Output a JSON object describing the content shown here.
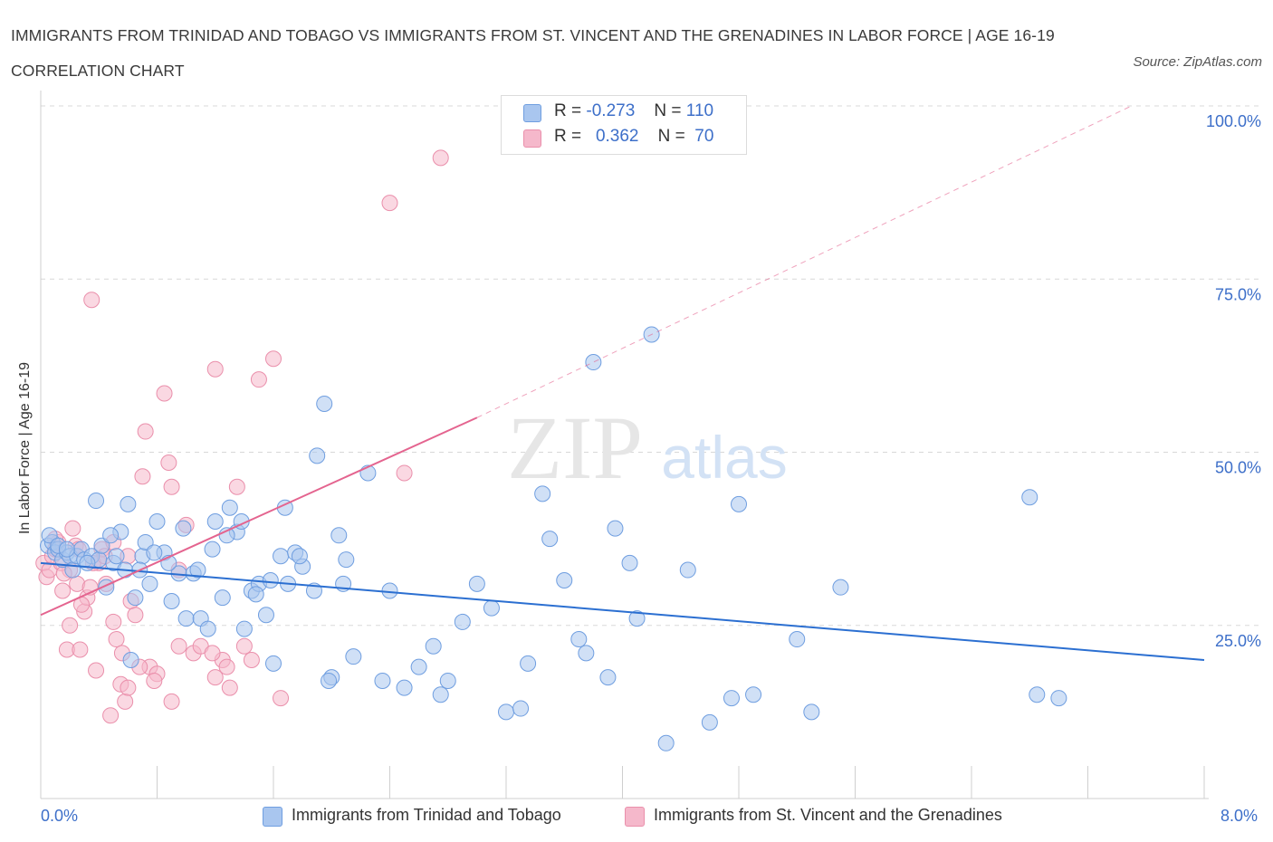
{
  "header": {
    "title": "IMMIGRANTS FROM TRINIDAD AND TOBAGO VS IMMIGRANTS FROM ST. VINCENT AND THE GRENADINES IN LABOR FORCE | AGE 16-19 CORRELATION CHART",
    "source": "Source: ZipAtlas.com"
  },
  "legend": {
    "rows": [
      {
        "r_label": "R =",
        "r_value": "-0.273",
        "n_label": "N =",
        "n_value": "110"
      },
      {
        "r_label": "R =",
        "r_value": "0.362",
        "n_label": "N =",
        "n_value": "70"
      }
    ]
  },
  "watermark": {
    "zip": "ZIP",
    "atlas": "atlas"
  },
  "colors": {
    "blue_fill": "#a9c6ef",
    "blue_stroke": "#6f9ee0",
    "blue_line": "#2b6fd1",
    "pink_fill": "#f5b8cb",
    "pink_stroke": "#ea8fab",
    "pink_line": "#e4648f",
    "grid": "#d8d8d8",
    "axis_label": "#3d6fc9"
  },
  "chart_data": {
    "type": "scatter",
    "title": "IMMIGRANTS FROM TRINIDAD AND TOBAGO VS IMMIGRANTS FROM ST. VINCENT AND THE GRENADINES IN LABOR FORCE | AGE 16-19 CORRELATION CHART",
    "xlabel": "",
    "ylabel": "In Labor Force | Age 16-19",
    "xlim": [
      0,
      8.0
    ],
    "ylim": [
      0,
      100
    ],
    "x_tick_labels": [
      "0.0%",
      "8.0%"
    ],
    "y_tick_labels": [
      "25.0%",
      "50.0%",
      "75.0%",
      "100.0%"
    ],
    "y_ticks": [
      25,
      50,
      75,
      100
    ],
    "grid": true,
    "legend_position": "bottom",
    "series": [
      {
        "name": "Immigrants from Trinidad and Tobago",
        "r": -0.273,
        "n": 110,
        "trend": {
          "x": [
            0,
            8.0
          ],
          "y": [
            34,
            20
          ]
        },
        "points": [
          [
            0.05,
            36.5
          ],
          [
            0.08,
            37
          ],
          [
            0.1,
            35.5
          ],
          [
            0.12,
            36
          ],
          [
            0.15,
            34.5
          ],
          [
            0.18,
            35.5
          ],
          [
            0.2,
            35
          ],
          [
            0.22,
            33
          ],
          [
            0.25,
            35
          ],
          [
            0.28,
            36
          ],
          [
            0.3,
            34.5
          ],
          [
            0.35,
            35
          ],
          [
            0.4,
            34.5
          ],
          [
            0.45,
            30.5
          ],
          [
            0.5,
            34
          ],
          [
            0.55,
            38.5
          ],
          [
            0.6,
            42.5
          ],
          [
            0.65,
            29
          ],
          [
            0.7,
            35
          ],
          [
            0.75,
            31
          ],
          [
            0.8,
            40
          ],
          [
            0.85,
            35.5
          ],
          [
            0.9,
            28.5
          ],
          [
            0.95,
            32.5
          ],
          [
            1.0,
            26
          ],
          [
            1.05,
            32.5
          ],
          [
            1.1,
            26
          ],
          [
            1.15,
            24.5
          ],
          [
            1.2,
            40
          ],
          [
            1.25,
            29
          ],
          [
            1.3,
            42
          ],
          [
            1.35,
            38.5
          ],
          [
            1.4,
            24.5
          ],
          [
            1.45,
            30
          ],
          [
            1.5,
            31
          ],
          [
            1.55,
            26.5
          ],
          [
            1.6,
            19.5
          ],
          [
            1.65,
            35
          ],
          [
            1.7,
            31
          ],
          [
            1.75,
            35.5
          ],
          [
            1.8,
            33.5
          ],
          [
            1.9,
            49.5
          ],
          [
            1.95,
            57
          ],
          [
            2.0,
            17.5
          ],
          [
            2.05,
            38
          ],
          [
            2.1,
            34.5
          ],
          [
            2.15,
            20.5
          ],
          [
            2.25,
            47
          ],
          [
            2.35,
            17
          ],
          [
            2.4,
            30
          ],
          [
            2.5,
            16
          ],
          [
            2.6,
            19
          ],
          [
            2.7,
            22
          ],
          [
            2.75,
            15
          ],
          [
            2.8,
            17
          ],
          [
            2.9,
            25.5
          ],
          [
            3.0,
            31
          ],
          [
            3.1,
            27.5
          ],
          [
            3.2,
            12.5
          ],
          [
            3.3,
            13
          ],
          [
            3.35,
            19.5
          ],
          [
            3.45,
            44
          ],
          [
            3.5,
            37.5
          ],
          [
            3.6,
            31.5
          ],
          [
            3.7,
            23
          ],
          [
            3.75,
            21
          ],
          [
            3.8,
            63
          ],
          [
            3.9,
            17.5
          ],
          [
            3.95,
            39
          ],
          [
            4.05,
            34
          ],
          [
            4.1,
            26
          ],
          [
            4.2,
            67
          ],
          [
            4.3,
            8
          ],
          [
            4.45,
            33
          ],
          [
            4.6,
            11
          ],
          [
            4.75,
            14.5
          ],
          [
            4.8,
            42.5
          ],
          [
            4.9,
            15
          ],
          [
            5.2,
            23
          ],
          [
            5.3,
            12.5
          ],
          [
            5.5,
            30.5
          ],
          [
            6.8,
            43.5
          ],
          [
            6.85,
            15
          ],
          [
            7.0,
            14.5
          ],
          [
            0.06,
            38
          ],
          [
            0.12,
            36.5
          ],
          [
            0.18,
            36
          ],
          [
            0.32,
            34
          ],
          [
            0.42,
            36.5
          ],
          [
            0.52,
            35
          ],
          [
            0.58,
            33
          ],
          [
            0.72,
            37
          ],
          [
            0.78,
            35.5
          ],
          [
            0.88,
            34
          ],
          [
            0.98,
            39
          ],
          [
            1.08,
            33
          ],
          [
            1.18,
            36
          ],
          [
            1.28,
            38
          ],
          [
            1.38,
            40
          ],
          [
            1.48,
            29.5
          ],
          [
            1.58,
            31.5
          ],
          [
            1.68,
            42
          ],
          [
            1.78,
            35
          ],
          [
            1.88,
            30
          ],
          [
            1.98,
            17
          ],
          [
            2.08,
            31
          ],
          [
            0.62,
            20
          ],
          [
            0.68,
            33
          ],
          [
            0.38,
            43
          ],
          [
            0.48,
            38
          ]
        ]
      },
      {
        "name": "Immigrants from St. Vincent and the Grenadines",
        "r": 0.362,
        "n": 70,
        "trend": {
          "x": [
            0,
            3.0
          ],
          "y": [
            26.5,
            55
          ]
        },
        "trend_extension": {
          "x": [
            3.0,
            7.5
          ],
          "y": [
            55,
            100
          ]
        },
        "points": [
          [
            0.02,
            34
          ],
          [
            0.04,
            32
          ],
          [
            0.06,
            33
          ],
          [
            0.08,
            35
          ],
          [
            0.1,
            36
          ],
          [
            0.12,
            37
          ],
          [
            0.15,
            30
          ],
          [
            0.18,
            21.5
          ],
          [
            0.2,
            33
          ],
          [
            0.22,
            39
          ],
          [
            0.25,
            31
          ],
          [
            0.27,
            21.5
          ],
          [
            0.3,
            27
          ],
          [
            0.32,
            29
          ],
          [
            0.35,
            72
          ],
          [
            0.38,
            18.5
          ],
          [
            0.4,
            34
          ],
          [
            0.42,
            36
          ],
          [
            0.45,
            31
          ],
          [
            0.48,
            12
          ],
          [
            0.5,
            37
          ],
          [
            0.52,
            23
          ],
          [
            0.55,
            16.5
          ],
          [
            0.58,
            14
          ],
          [
            0.6,
            16
          ],
          [
            0.62,
            28.5
          ],
          [
            0.65,
            26.5
          ],
          [
            0.7,
            46.5
          ],
          [
            0.72,
            53
          ],
          [
            0.75,
            19
          ],
          [
            0.8,
            18
          ],
          [
            0.85,
            58.5
          ],
          [
            0.88,
            48.5
          ],
          [
            0.9,
            14
          ],
          [
            0.95,
            22
          ],
          [
            1.0,
            39.5
          ],
          [
            1.05,
            21
          ],
          [
            1.1,
            22
          ],
          [
            1.2,
            17.5
          ],
          [
            1.25,
            20
          ],
          [
            1.3,
            16
          ],
          [
            1.35,
            45
          ],
          [
            1.4,
            22
          ],
          [
            1.45,
            20
          ],
          [
            1.5,
            60.5
          ],
          [
            1.6,
            63.5
          ],
          [
            1.65,
            14.5
          ],
          [
            2.5,
            47
          ],
          [
            2.4,
            86
          ],
          [
            2.75,
            92.5
          ],
          [
            1.2,
            62
          ],
          [
            0.9,
            45
          ],
          [
            0.95,
            33
          ],
          [
            0.1,
            37.5
          ],
          [
            0.14,
            34
          ],
          [
            0.16,
            32.5
          ],
          [
            0.24,
            36.5
          ],
          [
            0.28,
            28
          ],
          [
            0.34,
            30.5
          ],
          [
            0.36,
            34
          ],
          [
            0.44,
            35
          ],
          [
            0.5,
            25.5
          ],
          [
            0.56,
            21
          ],
          [
            0.6,
            35
          ],
          [
            0.68,
            19
          ],
          [
            0.78,
            17
          ],
          [
            1.18,
            21
          ],
          [
            1.28,
            19
          ],
          [
            0.2,
            25
          ],
          [
            0.26,
            36
          ]
        ]
      }
    ]
  },
  "x_axis": {
    "left_label": "0.0%",
    "right_label": "8.0%"
  },
  "bottom_legend": {
    "series1": "Immigrants from Trinidad and Tobago",
    "series2": "Immigrants from St. Vincent and the Grenadines"
  }
}
